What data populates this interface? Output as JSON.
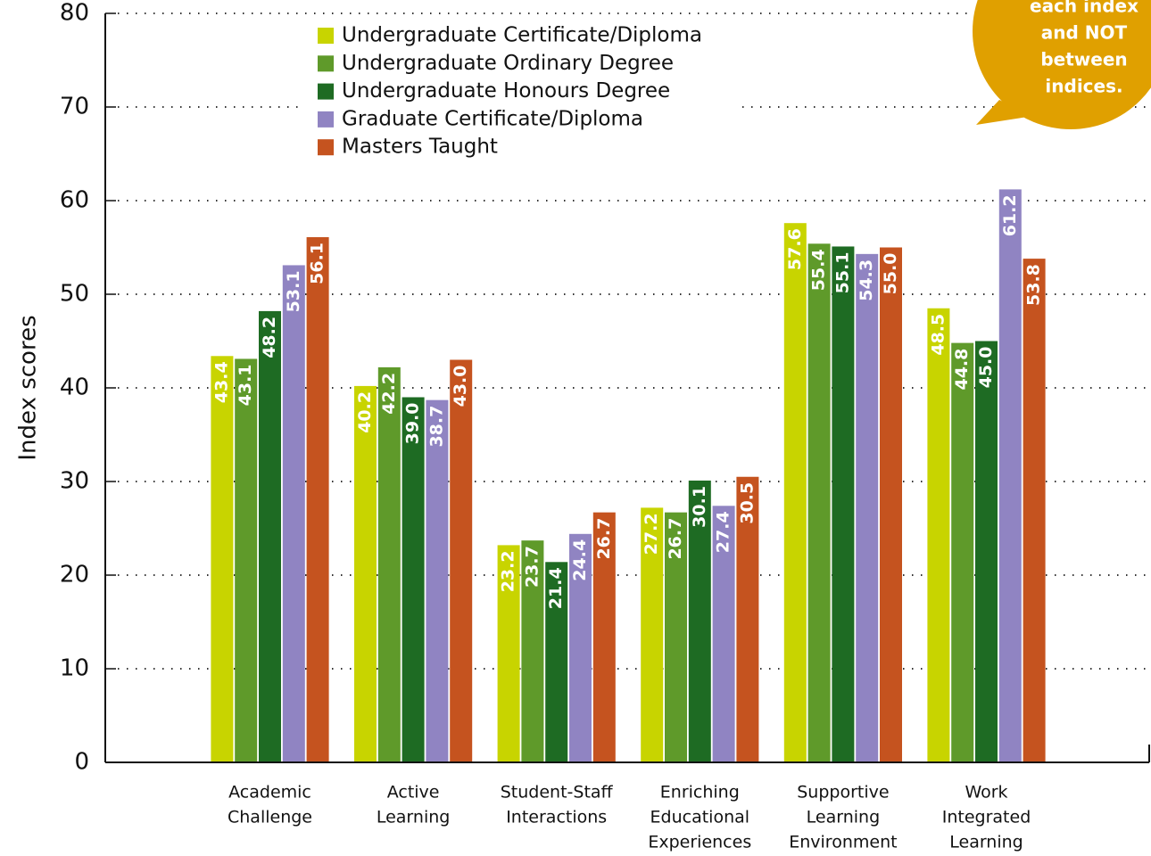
{
  "chart_data": {
    "type": "bar",
    "y_label": "Index scores",
    "annotation": [
      "each index",
      "and NOT",
      "between",
      "indices."
    ],
    "categories": [
      [
        "Academic",
        "Challenge"
      ],
      [
        "Active",
        "Learning"
      ],
      [
        "Student-Staff",
        "Interactions"
      ],
      [
        "Enriching",
        "Educational",
        "Experiences"
      ],
      [
        "Supportive",
        "Learning",
        "Environment"
      ],
      [
        "Work",
        "Integrated",
        "Learning"
      ]
    ],
    "series": [
      {
        "name": "Undergraduate Certificate/Diploma",
        "color": "#c8d400",
        "values": [
          43.4,
          40.2,
          23.2,
          27.2,
          57.6,
          48.5
        ],
        "value_labels": [
          "43.4",
          "40.2",
          "23.2",
          "27.2",
          "57.6",
          "48.5"
        ]
      },
      {
        "name": "Undergraduate Ordinary Degree",
        "color": "#5f9a2a",
        "values": [
          43.1,
          42.2,
          23.7,
          26.7,
          55.4,
          44.8
        ],
        "value_labels": [
          "43.1",
          "42.2",
          "23.7",
          "26.7",
          "55.4",
          "44.8"
        ]
      },
      {
        "name": "Undergraduate Honours Degree",
        "color": "#1e6b23",
        "values": [
          48.2,
          39.0,
          21.4,
          30.1,
          55.1,
          45.0
        ],
        "value_labels": [
          "48.2",
          "39.0",
          "21.4",
          "30.1",
          "55.1",
          "45.0"
        ]
      },
      {
        "name": "Graduate Certificate/Diploma",
        "color": "#9084c2",
        "values": [
          53.1,
          38.7,
          24.4,
          27.4,
          54.3,
          61.2
        ],
        "value_labels": [
          "53.1",
          "38.7",
          "24.4",
          "27.4",
          "54.3",
          "61.2"
        ]
      },
      {
        "name": "Masters Taught",
        "color": "#c5531f",
        "values": [
          56.1,
          43.0,
          26.7,
          30.5,
          55.0,
          53.8
        ],
        "value_labels": [
          "56.1",
          "43.0",
          "26.7",
          "30.5",
          "55.0",
          "53.8"
        ]
      }
    ],
    "ylim": [
      0,
      80
    ],
    "yticks": [
      0,
      10,
      20,
      30,
      40,
      50,
      60,
      70,
      80
    ],
    "grid": true,
    "legend": "top"
  }
}
